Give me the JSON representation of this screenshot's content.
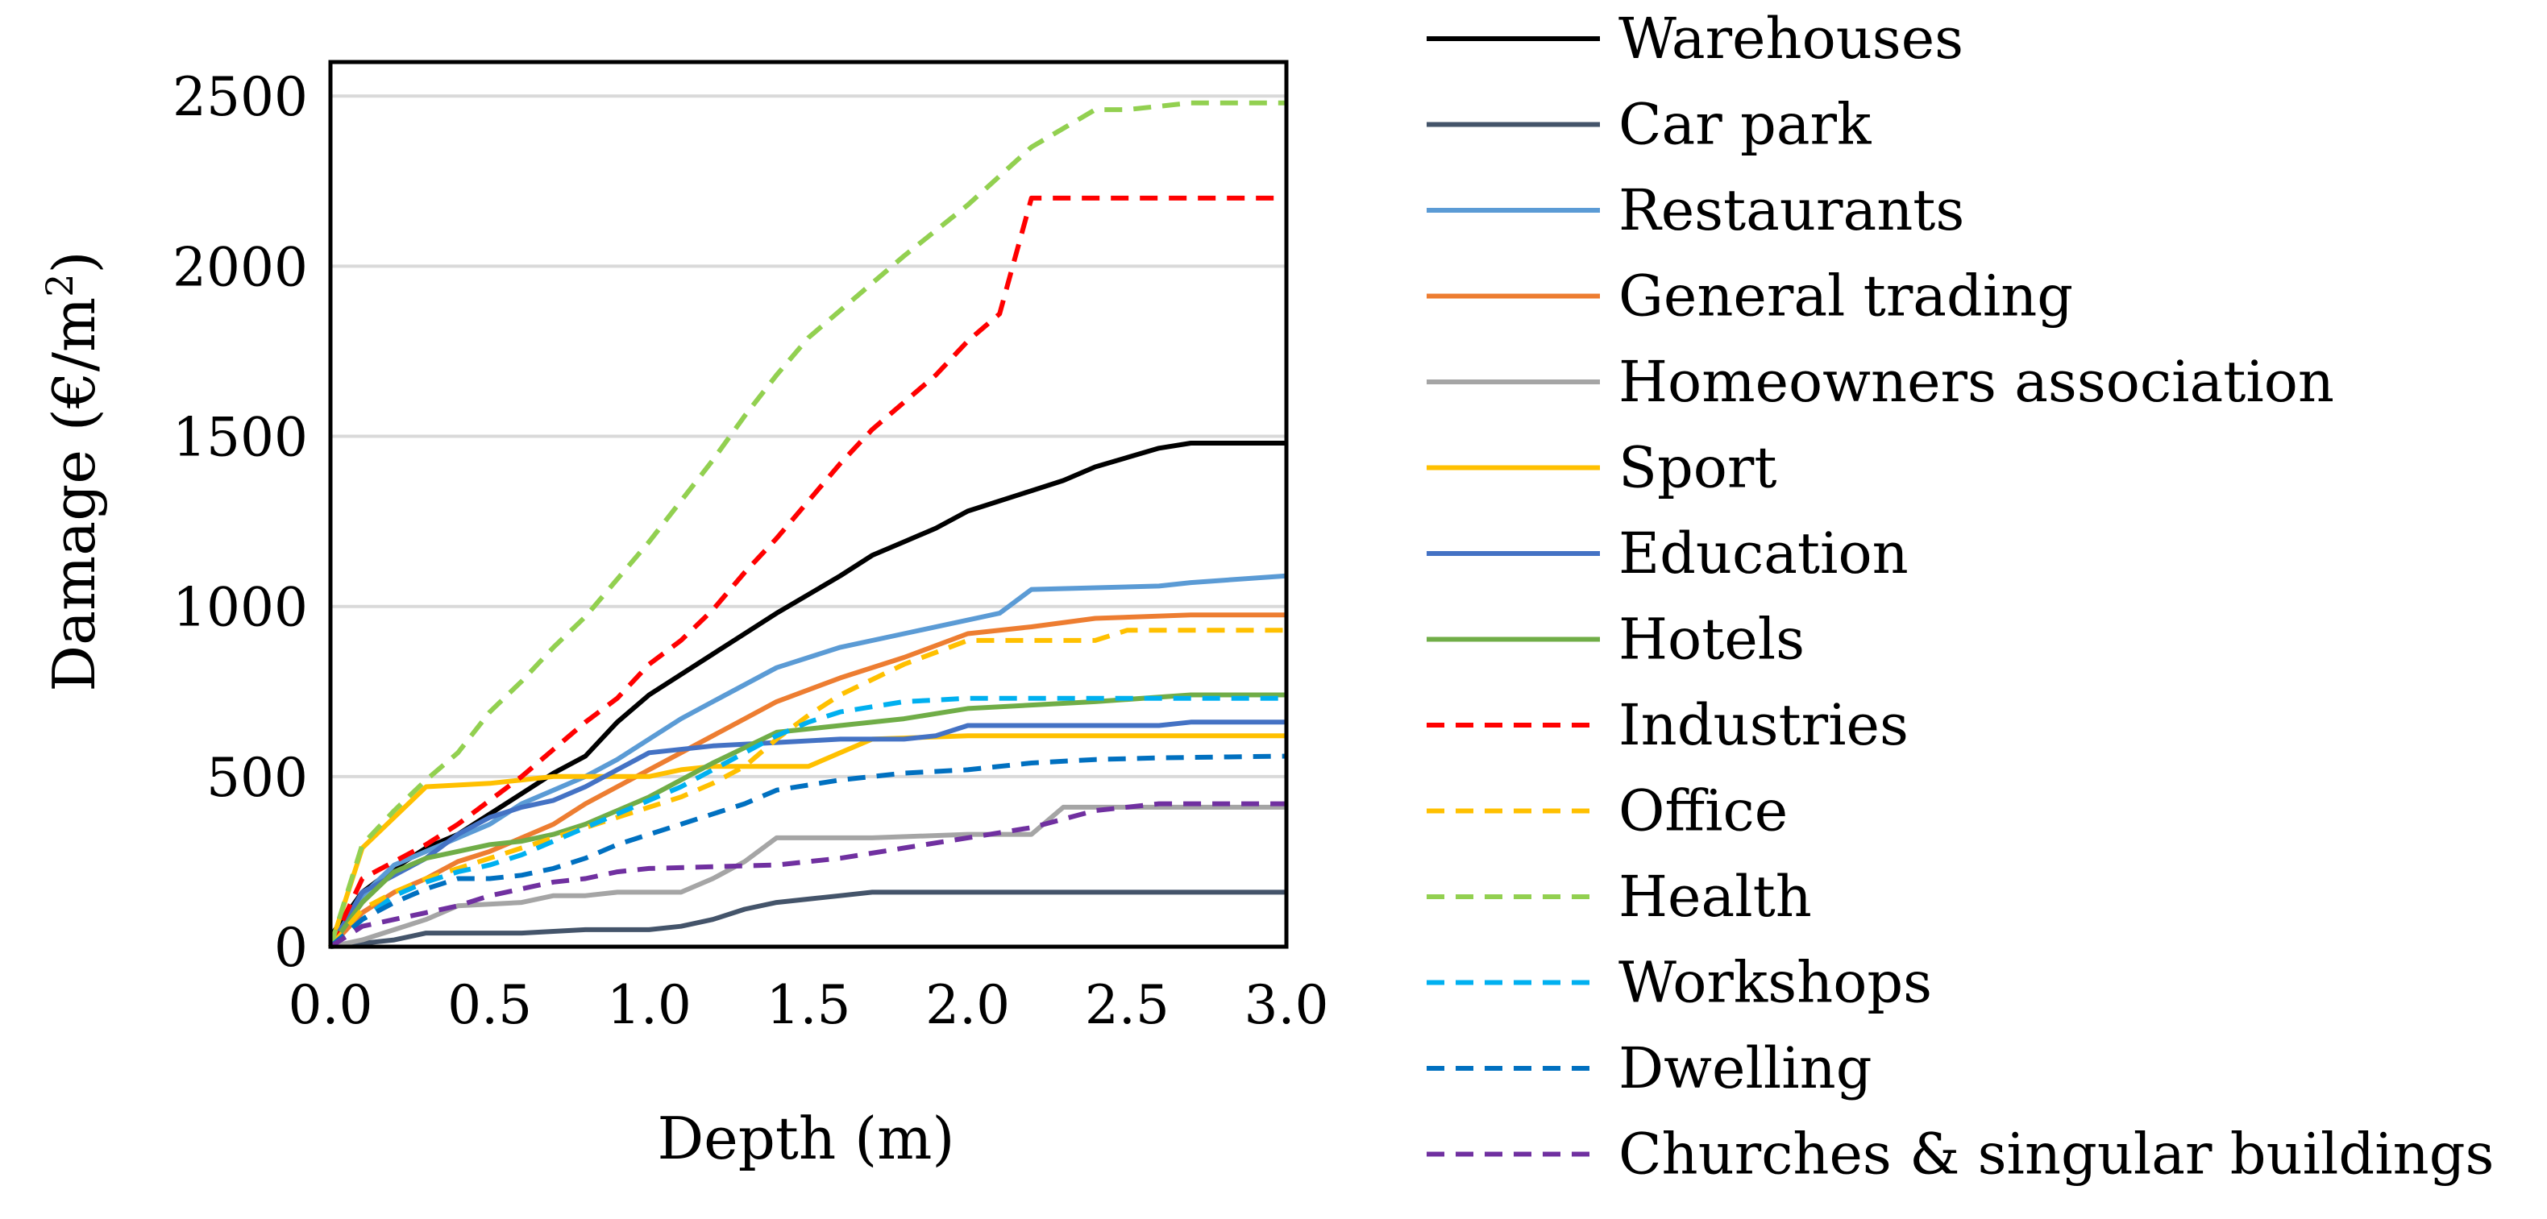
{
  "chart_data": {
    "type": "line",
    "title": "",
    "xlabel": "Depth (m)",
    "ylabel_prefix": "Damage (€/m",
    "ylabel_sup": "2",
    "ylabel_suffix": ")",
    "xlim": [
      0,
      3
    ],
    "ylim": [
      0,
      2600
    ],
    "x_ticks": [
      0,
      0.5,
      1,
      1.5,
      2,
      2.5,
      3
    ],
    "x_tick_labels": [
      "0.0",
      "0.5",
      "1.0",
      "1.5",
      "2.0",
      "2.5",
      "3.0"
    ],
    "y_ticks": [
      0,
      500,
      1000,
      1500,
      2000,
      2500
    ],
    "y_tick_labels": [
      "0",
      "500",
      "1000",
      "1500",
      "2000",
      "2500"
    ],
    "grid": "horizontal",
    "legend_position": "right",
    "series": [
      {
        "name": "Warehouses",
        "color": "#000000",
        "dash": "solid",
        "x": [
          0,
          0.1,
          0.2,
          0.3,
          0.4,
          0.5,
          0.6,
          0.7,
          0.8,
          0.9,
          1.0,
          1.2,
          1.3,
          1.4,
          1.6,
          1.7,
          1.8,
          1.9,
          2.0,
          2.2,
          2.3,
          2.4,
          2.6,
          2.7,
          3.0
        ],
        "y": [
          30,
          160,
          230,
          290,
          330,
          390,
          450,
          510,
          560,
          660,
          740,
          860,
          920,
          980,
          1090,
          1150,
          1190,
          1230,
          1280,
          1340,
          1370,
          1410,
          1465,
          1480,
          1480
        ]
      },
      {
        "name": "Car park",
        "color": "#44546a",
        "dash": "solid",
        "x": [
          0,
          0.1,
          0.2,
          0.3,
          0.6,
          0.7,
          0.8,
          1.0,
          1.1,
          1.2,
          1.3,
          1.4,
          1.5,
          1.6,
          1.7,
          3.0
        ],
        "y": [
          0,
          10,
          20,
          40,
          40,
          45,
          50,
          50,
          60,
          80,
          110,
          130,
          140,
          150,
          160,
          160
        ]
      },
      {
        "name": "Restaurants",
        "color": "#5b9bd5",
        "dash": "solid",
        "x": [
          0,
          0.1,
          0.2,
          0.3,
          0.4,
          0.5,
          0.6,
          0.7,
          0.8,
          0.9,
          1.0,
          1.1,
          1.2,
          1.3,
          1.4,
          1.6,
          1.8,
          2.0,
          2.1,
          2.2,
          2.6,
          2.7,
          3.0
        ],
        "y": [
          0,
          150,
          240,
          280,
          320,
          360,
          420,
          460,
          500,
          550,
          610,
          670,
          720,
          770,
          820,
          880,
          920,
          960,
          980,
          1050,
          1060,
          1070,
          1090
        ]
      },
      {
        "name": "General trading",
        "color": "#ed7d31",
        "dash": "solid",
        "x": [
          0,
          0.1,
          0.2,
          0.3,
          0.4,
          0.5,
          0.6,
          0.7,
          0.8,
          0.9,
          1.0,
          1.1,
          1.2,
          1.3,
          1.4,
          1.6,
          1.8,
          2.0,
          2.2,
          2.4,
          2.7,
          3.0
        ],
        "y": [
          0,
          100,
          160,
          200,
          250,
          280,
          320,
          360,
          420,
          470,
          520,
          570,
          620,
          670,
          720,
          790,
          850,
          920,
          940,
          965,
          975,
          975
        ]
      },
      {
        "name": "Homeowners association",
        "color": "#a5a5a5",
        "dash": "solid",
        "x": [
          0,
          0.1,
          0.2,
          0.3,
          0.4,
          0.6,
          0.7,
          0.8,
          0.9,
          1.1,
          1.2,
          1.3,
          1.4,
          1.7,
          2.0,
          2.2,
          2.3,
          2.4,
          3.0
        ],
        "y": [
          0,
          20,
          50,
          80,
          120,
          130,
          150,
          150,
          160,
          160,
          200,
          250,
          320,
          320,
          330,
          330,
          410,
          410,
          410
        ]
      },
      {
        "name": "Sport",
        "color": "#ffc000",
        "dash": "solid",
        "x": [
          0,
          0.1,
          0.3,
          0.5,
          0.6,
          0.7,
          1.0,
          1.1,
          1.2,
          1.3,
          1.5,
          1.6,
          1.7,
          2.0,
          3.0
        ],
        "y": [
          0,
          290,
          470,
          480,
          490,
          500,
          500,
          520,
          530,
          530,
          530,
          570,
          610,
          620,
          620
        ]
      },
      {
        "name": "Education",
        "color": "#4472c4",
        "dash": "solid",
        "x": [
          0,
          0.1,
          0.2,
          0.3,
          0.4,
          0.5,
          0.6,
          0.7,
          0.8,
          0.9,
          1.0,
          1.2,
          1.4,
          1.6,
          1.8,
          1.9,
          2.0,
          2.6,
          2.7,
          3.0
        ],
        "y": [
          0,
          160,
          210,
          260,
          330,
          380,
          410,
          430,
          470,
          520,
          570,
          590,
          600,
          610,
          610,
          620,
          650,
          650,
          660,
          660
        ]
      },
      {
        "name": "Hotels",
        "color": "#70ad47",
        "dash": "solid",
        "x": [
          0,
          0.1,
          0.2,
          0.3,
          0.4,
          0.5,
          0.6,
          0.7,
          0.8,
          0.9,
          1.0,
          1.2,
          1.4,
          1.6,
          1.8,
          2.0,
          2.4,
          2.7,
          3.0
        ],
        "y": [
          0,
          130,
          220,
          260,
          280,
          300,
          310,
          330,
          360,
          400,
          440,
          540,
          630,
          650,
          670,
          700,
          720,
          740,
          740
        ]
      },
      {
        "name": "Industries",
        "color": "#ff0000",
        "dash": "dashed",
        "x": [
          0,
          0.1,
          0.2,
          0.3,
          0.4,
          0.5,
          0.6,
          0.7,
          0.8,
          0.9,
          1.0,
          1.1,
          1.2,
          1.3,
          1.4,
          1.5,
          1.6,
          1.7,
          1.8,
          1.9,
          2.0,
          2.1,
          2.2,
          3.0
        ],
        "y": [
          0,
          200,
          250,
          300,
          360,
          430,
          500,
          580,
          660,
          730,
          830,
          900,
          990,
          1100,
          1200,
          1310,
          1420,
          1520,
          1600,
          1680,
          1780,
          1860,
          2200,
          2200
        ]
      },
      {
        "name": "Office",
        "color": "#ffc000",
        "dash": "dashed",
        "x": [
          0,
          0.1,
          0.2,
          0.3,
          0.4,
          0.5,
          0.6,
          0.7,
          0.8,
          0.9,
          1.0,
          1.1,
          1.2,
          1.3,
          1.4,
          1.5,
          1.6,
          1.8,
          2.0,
          2.4,
          2.5,
          3.0
        ],
        "y": [
          0,
          110,
          160,
          200,
          230,
          260,
          290,
          320,
          350,
          380,
          410,
          440,
          480,
          530,
          610,
          680,
          740,
          830,
          900,
          900,
          930,
          930
        ]
      },
      {
        "name": "Health",
        "color": "#92d050",
        "dash": "dashed",
        "x": [
          0,
          0.1,
          0.2,
          0.3,
          0.4,
          0.5,
          0.6,
          0.7,
          0.8,
          0.9,
          1.0,
          1.1,
          1.2,
          1.3,
          1.4,
          1.5,
          1.6,
          1.8,
          2.0,
          2.2,
          2.4,
          2.5,
          2.7,
          3.0
        ],
        "y": [
          0,
          300,
          400,
          490,
          570,
          690,
          780,
          880,
          970,
          1080,
          1190,
          1310,
          1430,
          1560,
          1680,
          1790,
          1870,
          2030,
          2180,
          2350,
          2460,
          2460,
          2480,
          2480
        ]
      },
      {
        "name": "Workshops",
        "color": "#00b0f0",
        "dash": "dashed",
        "x": [
          0,
          0.1,
          0.2,
          0.3,
          0.4,
          0.5,
          0.6,
          0.7,
          0.8,
          0.9,
          1.0,
          1.1,
          1.2,
          1.3,
          1.4,
          1.5,
          1.6,
          1.8,
          2.0,
          3.0
        ],
        "y": [
          0,
          80,
          150,
          190,
          220,
          240,
          270,
          310,
          350,
          390,
          430,
          470,
          520,
          570,
          620,
          660,
          690,
          720,
          730,
          730
        ]
      },
      {
        "name": "Dwelling",
        "color": "#0070c0",
        "dash": "dashed",
        "x": [
          0,
          0.1,
          0.2,
          0.3,
          0.4,
          0.5,
          0.6,
          0.7,
          0.8,
          0.9,
          1.0,
          1.1,
          1.2,
          1.3,
          1.4,
          1.6,
          1.8,
          2.0,
          2.2,
          2.4,
          2.6,
          3.0
        ],
        "y": [
          0,
          80,
          130,
          170,
          200,
          200,
          210,
          230,
          260,
          300,
          330,
          360,
          390,
          420,
          460,
          490,
          510,
          520,
          540,
          550,
          555,
          560
        ]
      },
      {
        "name": "Churches & singular buildings",
        "color": "#7030a0",
        "dash": "dashed",
        "x": [
          0,
          0.1,
          0.2,
          0.3,
          0.4,
          0.5,
          0.6,
          0.7,
          0.8,
          0.9,
          1.0,
          1.2,
          1.4,
          1.6,
          1.8,
          2.0,
          2.2,
          2.4,
          2.6,
          3.0
        ],
        "y": [
          0,
          60,
          80,
          100,
          120,
          150,
          170,
          190,
          200,
          220,
          230,
          235,
          240,
          260,
          290,
          320,
          350,
          400,
          420,
          420
        ]
      }
    ]
  }
}
